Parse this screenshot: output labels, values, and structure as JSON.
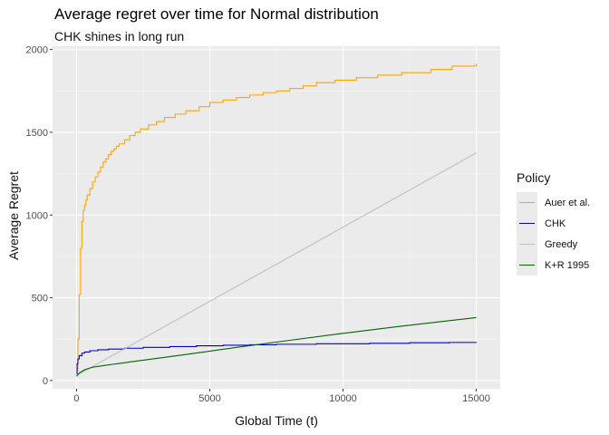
{
  "chart_data": {
    "type": "line",
    "title": "Average regret over time for Normal distribution",
    "subtitle": "CHK shines in long run",
    "xlabel": "Global Time (t)",
    "ylabel": "Average Regret",
    "xlim": [
      -900,
      15900
    ],
    "ylim": [
      -50,
      2020
    ],
    "xticks": [
      0,
      5000,
      10000,
      15000
    ],
    "xtick_labels": [
      "0",
      "5000",
      "10000",
      "15000"
    ],
    "yticks": [
      0,
      500,
      1000,
      1500,
      2000
    ],
    "ytick_labels": [
      "0",
      "500",
      "1000",
      "1500",
      "2000"
    ],
    "grid": true,
    "legend": {
      "title": "Policy",
      "placement": "right"
    },
    "series": [
      {
        "name": "Auer et al.",
        "color": "#FFA500",
        "step": true,
        "x": [
          0,
          50,
          100,
          150,
          200,
          250,
          300,
          350,
          400,
          500,
          600,
          700,
          800,
          900,
          1000,
          1100,
          1200,
          1300,
          1400,
          1500,
          1600,
          1800,
          2000,
          2200,
          2400,
          2700,
          3000,
          3300,
          3700,
          4100,
          4600,
          5000,
          5500,
          6000,
          6500,
          7000,
          7500,
          8000,
          8500,
          9000,
          9700,
          10500,
          11300,
          12200,
          13300,
          14100,
          15000
        ],
        "y": [
          60,
          250,
          520,
          800,
          960,
          1030,
          1060,
          1090,
          1120,
          1160,
          1200,
          1230,
          1260,
          1290,
          1320,
          1340,
          1365,
          1385,
          1400,
          1415,
          1430,
          1455,
          1480,
          1500,
          1520,
          1545,
          1565,
          1590,
          1610,
          1630,
          1655,
          1680,
          1695,
          1710,
          1725,
          1740,
          1750,
          1765,
          1780,
          1800,
          1815,
          1830,
          1845,
          1860,
          1880,
          1900,
          1915
        ]
      },
      {
        "name": "CHK",
        "color": "#0000CD",
        "step": true,
        "x": [
          0,
          20,
          50,
          100,
          200,
          300,
          500,
          800,
          1200,
          1800,
          2500,
          3500,
          4500,
          5500,
          6500,
          7500,
          9000,
          11000,
          12500,
          14000,
          15000
        ],
        "y": [
          40,
          100,
          130,
          150,
          165,
          172,
          180,
          186,
          190,
          195,
          200,
          205,
          210,
          213,
          216,
          219,
          222,
          225,
          228,
          230,
          232
        ]
      },
      {
        "name": "Greedy",
        "color": "#BEBEBE",
        "step": false,
        "x": [
          0,
          15000
        ],
        "y": [
          30,
          1375
        ]
      },
      {
        "name": "K+R 1995",
        "color": "#006400",
        "step": false,
        "x": [
          0,
          100,
          300,
          600,
          1000,
          2000,
          4000,
          6000,
          8000,
          10000,
          12000,
          15000
        ],
        "y": [
          25,
          45,
          65,
          80,
          90,
          112,
          155,
          200,
          243,
          285,
          325,
          380
        ]
      }
    ]
  }
}
